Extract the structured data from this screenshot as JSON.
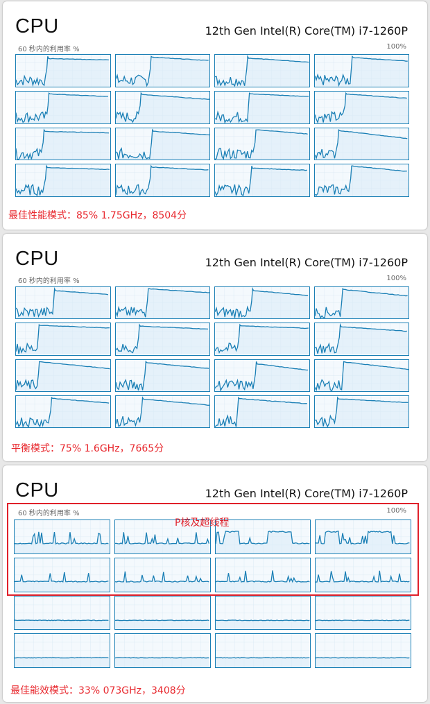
{
  "panels": [
    {
      "title": "CPU",
      "model": "12th Gen Intel(R) Core(TM) i7-1260P",
      "util_label": "60 秒内的利用率 %",
      "max_label": "100%",
      "caption": "最佳性能模式：85% 1.75GHz，8504分",
      "pattern": "spike"
    },
    {
      "title": "CPU",
      "model": "12th Gen Intel(R) Core(TM) i7-1260P",
      "util_label": "60 秒内的利用率 %",
      "max_label": "100%",
      "caption": "平衡模式：75% 1.6GHz，7665分",
      "pattern": "spike"
    },
    {
      "title": "CPU",
      "model": "12th Gen Intel(R) Core(TM) i7-1260P",
      "util_label": "60 秒内的利用率 %",
      "max_label": "100%",
      "caption": "最佳能效模式：33% 073GHz，3408分",
      "pattern": "flat",
      "highlight_label": "P核及超线程"
    }
  ],
  "colors": {
    "graph_line": "#1a7fb5",
    "graph_fill": "#f4f9fd",
    "grid_line": "#d4e6f2",
    "caption": "#e8282e"
  }
}
